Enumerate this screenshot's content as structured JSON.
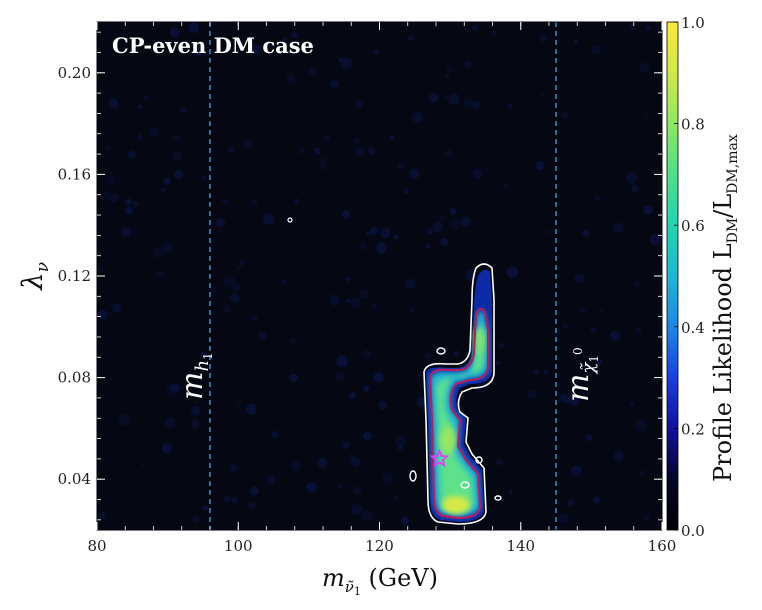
{
  "chart_data": {
    "type": "heatmap",
    "title": "CP-even DM case",
    "xlabel": "m_ν̃₁ (GeV)",
    "ylabel": "λ_ν",
    "xlim": [
      80,
      160
    ],
    "ylim": [
      0.02,
      0.22
    ],
    "xticks": [
      80,
      100,
      120,
      140,
      160
    ],
    "yticks": [
      0.04,
      0.08,
      0.12,
      0.16,
      0.2
    ],
    "ytick_labels": [
      "0.04",
      "0.08",
      "0.12",
      "0.16",
      "0.20"
    ],
    "xtick_labels": [
      "80",
      "100",
      "120",
      "140",
      "160"
    ],
    "colorbar": {
      "label": "Profile Likelihood L_DM/L_DM,max",
      "range": [
        0.0,
        1.0
      ],
      "ticks": [
        0.0,
        0.2,
        0.4,
        0.6,
        0.8,
        1.0
      ],
      "tick_labels": [
        "0.0",
        "0.2",
        "0.4",
        "0.6",
        "0.8",
        "1.0"
      ]
    },
    "reference_lines": [
      {
        "label": "m_h1",
        "x": 96
      },
      {
        "label": "m_χ̃₁⁰",
        "x": 145
      }
    ],
    "best_fit": {
      "x": 128.5,
      "y": 0.048
    },
    "high_likelihood_region": [
      {
        "x": 129.5,
        "y": 0.028,
        "value": 0.92
      },
      {
        "x": 130.5,
        "y": 0.035,
        "value": 0.88
      },
      {
        "x": 128.5,
        "y": 0.045,
        "value": 0.72
      },
      {
        "x": 128.0,
        "y": 0.058,
        "value": 0.66
      },
      {
        "x": 128.0,
        "y": 0.068,
        "value": 0.6
      },
      {
        "x": 128.5,
        "y": 0.076,
        "value": 0.55
      },
      {
        "x": 131.0,
        "y": 0.079,
        "value": 0.52
      },
      {
        "x": 133.0,
        "y": 0.085,
        "value": 0.6
      },
      {
        "x": 133.5,
        "y": 0.094,
        "value": 0.58
      },
      {
        "x": 133.5,
        "y": 0.1,
        "value": 0.45
      },
      {
        "x": 134.0,
        "y": 0.108,
        "value": 0.25
      },
      {
        "x": 134.0,
        "y": 0.115,
        "value": 0.14
      }
    ],
    "colors": {
      "background": "#050812",
      "contour_inner": "#c2185b",
      "contour_outer": "#ffffff",
      "reference_line": "#3a9ad9",
      "star": "#e040fb"
    }
  }
}
